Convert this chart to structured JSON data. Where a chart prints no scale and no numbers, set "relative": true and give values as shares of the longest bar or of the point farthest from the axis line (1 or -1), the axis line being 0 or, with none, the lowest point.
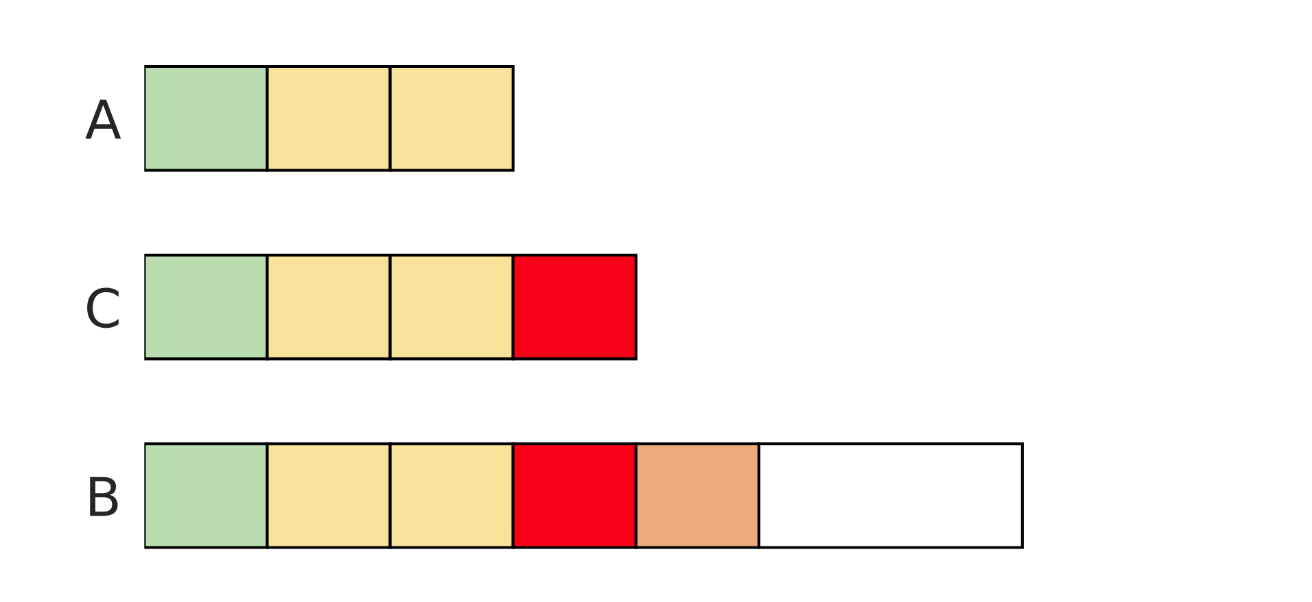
{
  "chart_data": {
    "type": "bar",
    "orientation": "horizontal",
    "stacked": true,
    "relative": true,
    "categories": [
      "A",
      "C",
      "B"
    ],
    "series": [
      {
        "color": "#b9dcb0",
        "values": [
          0.14,
          0.14,
          0.14
        ]
      },
      {
        "color": "#f7e29a",
        "values": [
          0.14,
          0.14,
          0.14
        ]
      },
      {
        "color": "#f7e29a",
        "values": [
          0.14,
          0.14,
          0.14
        ]
      },
      {
        "color": "#fb0019",
        "values": [
          null,
          0.14,
          0.14
        ]
      },
      {
        "color": "#ecaa7d",
        "values": [
          null,
          null,
          0.14
        ]
      },
      {
        "color": "#ffffff",
        "values": [
          null,
          null,
          0.3
        ]
      }
    ],
    "grid": false,
    "legend": false
  }
}
